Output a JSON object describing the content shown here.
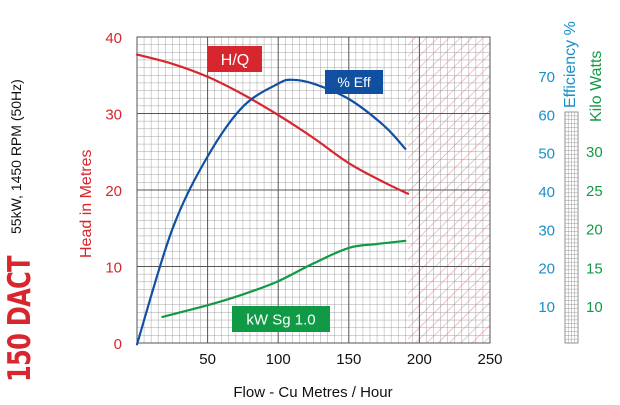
{
  "colors": {
    "head": "#d7262e",
    "efficiency": "#1150a0",
    "power": "#119a45",
    "eff_axis": "#1a8fc7",
    "grid": "#9a9a9a",
    "hatch": "#e8a0a8"
  },
  "model": {
    "name": "150 DACT",
    "spec": "55kW, 1450 RPM (50Hz)"
  },
  "chart_data": {
    "type": "line",
    "xlabel": "Flow - Cu Metres / Hour",
    "x_ticks": [
      "50",
      "100",
      "150",
      "200",
      "250"
    ],
    "xlim": [
      0,
      250
    ],
    "y_left": {
      "label": "Head in Metres",
      "ticks": [
        "0",
        "10",
        "20",
        "30",
        "40"
      ],
      "lim": [
        0,
        40
      ]
    },
    "y_eff": {
      "label": "Efficiency %",
      "ticks": [
        "10",
        "20",
        "30",
        "40",
        "50",
        "60",
        "70"
      ]
    },
    "y_kw": {
      "label": "Kilo Watts",
      "ticks": [
        "10",
        "15",
        "20",
        "25",
        "30"
      ]
    },
    "hatched_region_x": [
      192,
      250
    ],
    "series": [
      {
        "name": "H/Q",
        "axis": "head",
        "x": [
          0,
          25,
          50,
          75,
          100,
          125,
          150,
          175,
          192
        ],
        "y": [
          37.7,
          36.5,
          34.8,
          32.5,
          29.8,
          26.8,
          23.5,
          21.0,
          19.5
        ]
      },
      {
        "name": "% Eff",
        "axis": "efficiency",
        "x": [
          0,
          25,
          50,
          75,
          100,
          110,
          125,
          150,
          175,
          190
        ],
        "y": [
          0,
          30,
          49,
          62,
          68,
          69,
          68,
          64,
          57,
          51
        ]
      },
      {
        "name": "kW Sg 1.0",
        "axis": "kw",
        "x": [
          18,
          50,
          75,
          100,
          125,
          150,
          170,
          190
        ],
        "y": [
          8.6,
          10.1,
          11.5,
          13.2,
          15.5,
          17.5,
          18.0,
          18.4
        ]
      }
    ]
  }
}
